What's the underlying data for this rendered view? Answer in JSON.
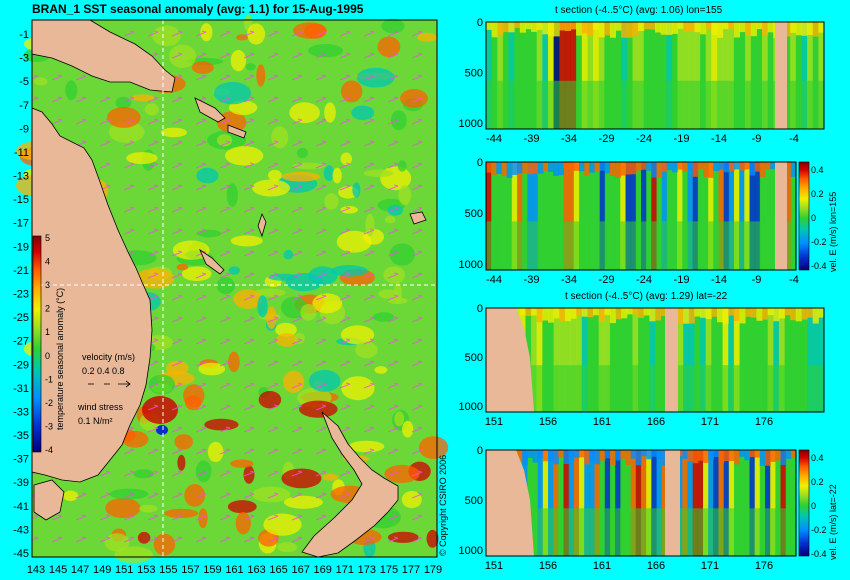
{
  "colors": {
    "background": "#00ffff",
    "land": "#e8b898",
    "colormap": [
      "#00007a",
      "#0030d0",
      "#0090ff",
      "#00c8b0",
      "#30d030",
      "#a0e020",
      "#f0f000",
      "#ffb000",
      "#ff6000",
      "#d00000",
      "#800000"
    ]
  },
  "chart_data": [
    {
      "type": "heatmap",
      "title": "BRAN_1 SST seasonal anomaly (avg: 1.1) for 15-Aug-1995",
      "x_ticks": [
        "143",
        "145",
        "147",
        "149",
        "151",
        "153",
        "155",
        "157",
        "159",
        "161",
        "163",
        "165",
        "167",
        "169",
        "171",
        "173",
        "175",
        "177",
        "179"
      ],
      "y_ticks": [
        "-1",
        "-3",
        "-5",
        "-7",
        "-9",
        "-11",
        "-13",
        "-15",
        "-17",
        "-19",
        "-21",
        "-23",
        "-25",
        "-27",
        "-29",
        "-31",
        "-33",
        "-35",
        "-37",
        "-39",
        "-41",
        "-43",
        "-45"
      ],
      "colorbar": {
        "label": "temperature seasonal anomaly (°C)",
        "ticks": [
          "5",
          "4",
          "3",
          "2",
          "1",
          "0",
          "-1",
          "-2",
          "-3",
          "-4"
        ],
        "range": [
          -4,
          5
        ]
      },
      "legend": {
        "velocity_label": "velocity (m/s)",
        "velocity_values": "0.2 0.4 0.8",
        "wind_label": "wind stress",
        "wind_value": "0.1 N/m²"
      },
      "crosshair": {
        "lon": 155,
        "lat": -22
      },
      "copyright": "© Copyright CSIRO 2006"
    },
    {
      "type": "heatmap",
      "title": "t section (-4..5°C) (avg: 1.06) lon=155",
      "x_ticks": [
        "-44",
        "-39",
        "-34",
        "-29",
        "-24",
        "-19",
        "-14",
        "-9",
        "-4"
      ],
      "y_ticks": [
        "0",
        "500",
        "1000"
      ]
    },
    {
      "type": "heatmap",
      "title": "",
      "x_ticks": [
        "-44",
        "-39",
        "-34",
        "-29",
        "-24",
        "-19",
        "-14",
        "-9",
        "-4"
      ],
      "y_ticks": [
        "0",
        "500",
        "1000"
      ],
      "colorbar": {
        "label": "vel. E (m/s) lon=155",
        "ticks": [
          "0.4",
          "0.2",
          "0",
          "-0.2",
          "-0.4"
        ]
      }
    },
    {
      "type": "heatmap",
      "title": "t section (-4..5°C) (avg: 1.29) lat=-22",
      "x_ticks": [
        "151",
        "156",
        "161",
        "166",
        "171",
        "176"
      ],
      "y_ticks": [
        "0",
        "500",
        "1000"
      ]
    },
    {
      "type": "heatmap",
      "title": "",
      "x_ticks": [
        "151",
        "156",
        "161",
        "166",
        "171",
        "176"
      ],
      "y_ticks": [
        "0",
        "500",
        "1000"
      ],
      "colorbar": {
        "label": "vel. E (m/s) lat=-22",
        "ticks": [
          "0.4",
          "0.2",
          "0",
          "-0.2",
          "-0.4"
        ]
      }
    }
  ]
}
